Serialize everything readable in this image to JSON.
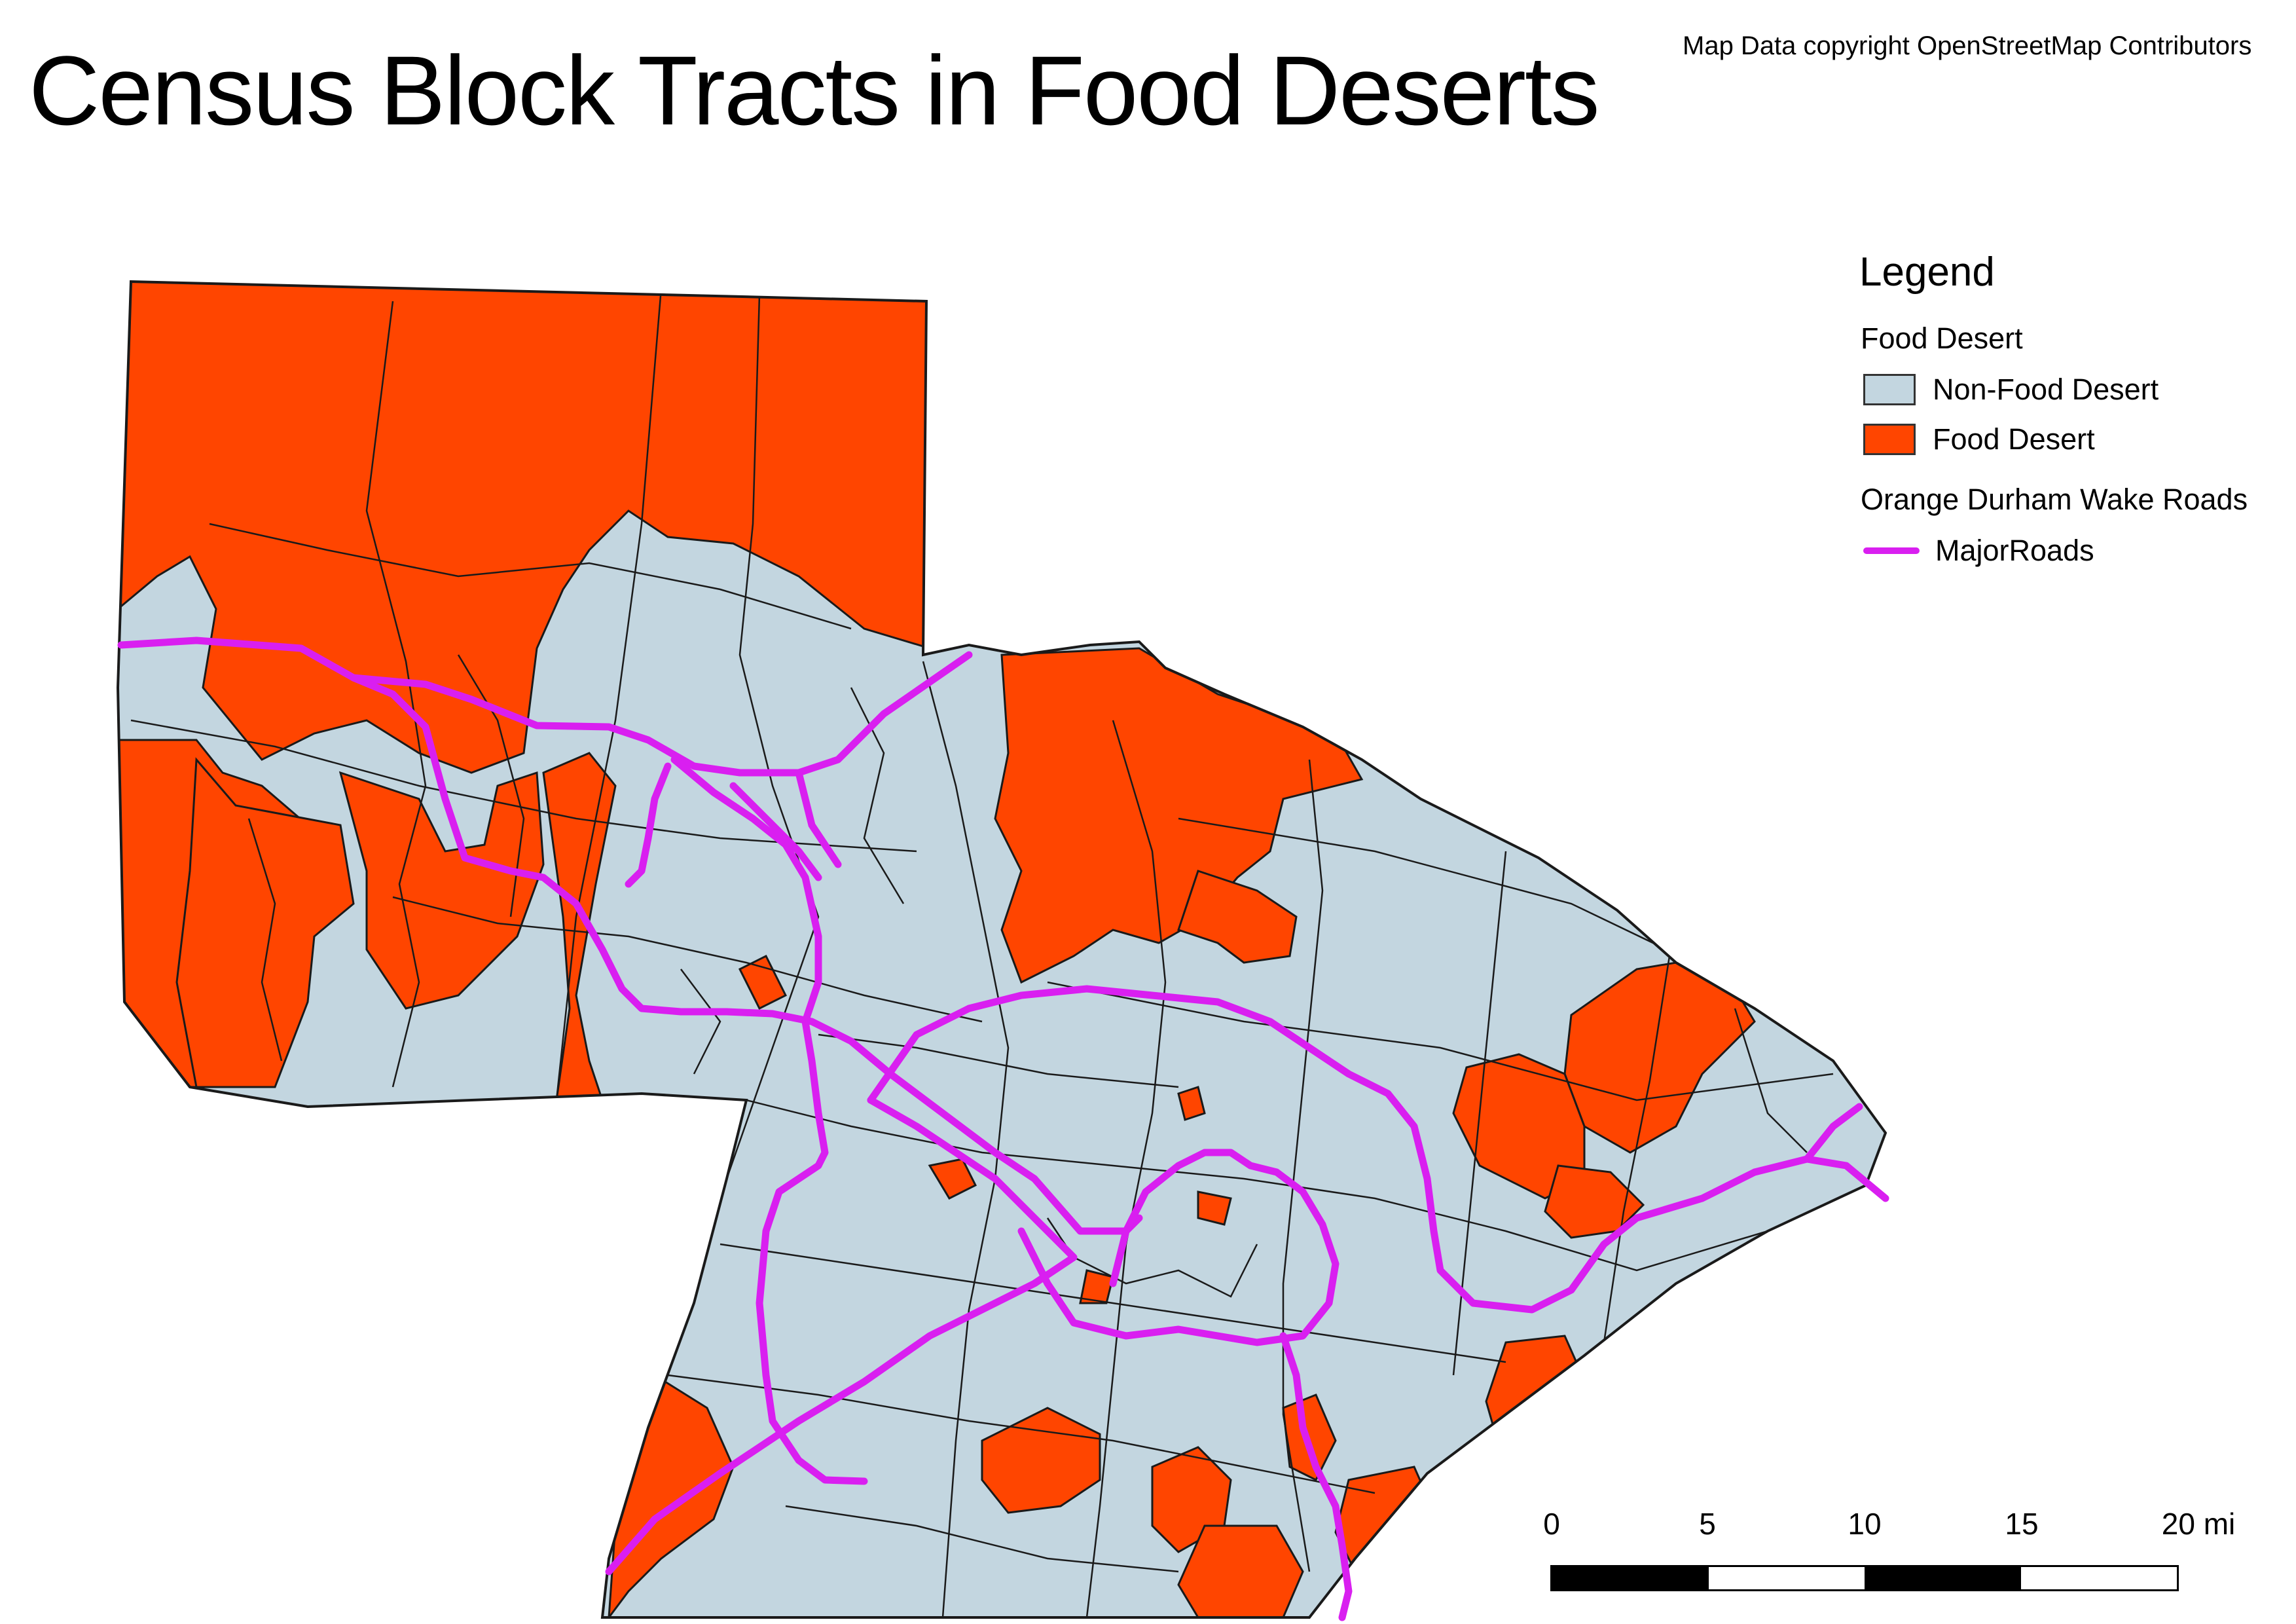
{
  "title": "Census Block Tracts in Food Deserts",
  "attribution": "Map Data copyright OpenStreetMap Contributors",
  "colors": {
    "food_desert": "#ff4500",
    "non_food_desert": "#c3d6e0",
    "major_roads": "#d91ff0",
    "tract_border": "#1a1a1a"
  },
  "legend": {
    "title": "Legend",
    "layers": [
      {
        "name": "Food Desert",
        "items": [
          {
            "label": "Non-Food Desert",
            "swatch": "fill",
            "color": "#c3d6e0"
          },
          {
            "label": "Food Desert",
            "swatch": "fill",
            "color": "#ff4500"
          }
        ]
      },
      {
        "name": "Orange Durham Wake Roads",
        "items": [
          {
            "label": "MajorRoads",
            "swatch": "line",
            "color": "#d91ff0"
          }
        ]
      }
    ]
  },
  "scalebar": {
    "ticks": [
      "0",
      "5",
      "10",
      "15",
      "20 mi"
    ],
    "segments": [
      "black",
      "white",
      "black",
      "white"
    ]
  }
}
